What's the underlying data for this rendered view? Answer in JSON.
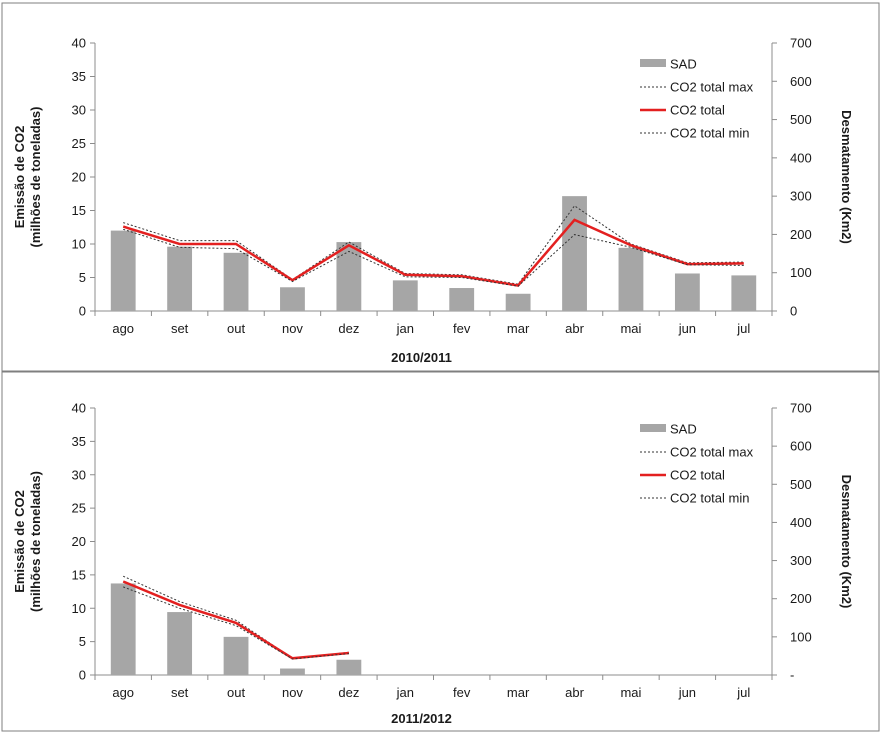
{
  "chart_data": [
    {
      "type": "bar",
      "period_label": "2010/2011",
      "categories": [
        "ago",
        "set",
        "out",
        "nov",
        "dez",
        "jan",
        "fev",
        "mar",
        "abr",
        "mai",
        "jun",
        "jul"
      ],
      "ylabel_left": "Emissão de CO2",
      "ylabel_left_line2": "(milhões de toneladas)",
      "ylabel_right": "Desmatamento (Km2)",
      "ylim_left": [
        0,
        40
      ],
      "ylim_right": [
        0,
        700
      ],
      "yticks_left": [
        "0",
        "5",
        "10",
        "15",
        "20",
        "25",
        "30",
        "35",
        "40"
      ],
      "yticks_right": [
        "0",
        "100",
        "200",
        "300",
        "400",
        "500",
        "600",
        "700"
      ],
      "series": [
        {
          "name": "SAD",
          "axis": "right",
          "kind": "bar",
          "color": "#a6a6a6",
          "values": [
            210,
            168,
            152,
            62,
            180,
            80,
            60,
            45,
            300,
            165,
            98,
            93
          ]
        },
        {
          "name": "CO2 total max",
          "axis": "left",
          "kind": "line",
          "style": "dotted",
          "color": "#333333",
          "values": [
            13.2,
            10.5,
            10.5,
            4.7,
            10.3,
            5.6,
            5.4,
            4.0,
            15.7,
            10.0,
            7.2,
            7.3
          ]
        },
        {
          "name": "CO2 total",
          "axis": "left",
          "kind": "line",
          "style": "solid",
          "color": "#e32020",
          "values": [
            12.6,
            10.0,
            10.0,
            4.6,
            9.8,
            5.4,
            5.2,
            3.8,
            13.6,
            9.8,
            7.0,
            7.1
          ]
        },
        {
          "name": "CO2 total min",
          "axis": "left",
          "kind": "line",
          "style": "dotted",
          "color": "#333333",
          "values": [
            12.2,
            9.5,
            9.3,
            4.4,
            8.9,
            5.1,
            5.0,
            3.7,
            11.4,
            9.5,
            6.9,
            6.8
          ]
        }
      ]
    },
    {
      "type": "bar",
      "period_label": "2011/2012",
      "categories": [
        "ago",
        "set",
        "out",
        "nov",
        "dez",
        "jan",
        "fev",
        "mar",
        "abr",
        "mai",
        "jun",
        "jul"
      ],
      "ylabel_left": "Emissão de CO2",
      "ylabel_left_line2": "(milhões de toneladas)",
      "ylabel_right": "Desmatamento (Km2)",
      "ylim_left": [
        0,
        40
      ],
      "ylim_right": [
        0,
        700
      ],
      "yticks_left": [
        "0",
        "5",
        "10",
        "15",
        "20",
        "25",
        "30",
        "35",
        "40"
      ],
      "yticks_right": [
        "-",
        "100",
        "200",
        "300",
        "400",
        "500",
        "600",
        "700"
      ],
      "series": [
        {
          "name": "SAD",
          "axis": "right",
          "kind": "bar",
          "color": "#a6a6a6",
          "values": [
            240,
            165,
            100,
            17,
            40,
            null,
            null,
            null,
            null,
            null,
            null,
            null
          ]
        },
        {
          "name": "CO2 total max",
          "axis": "left",
          "kind": "line",
          "style": "dotted",
          "color": "#333333",
          "values": [
            14.8,
            11.0,
            8.2,
            2.5,
            3.4,
            null,
            null,
            null,
            null,
            null,
            null,
            null
          ]
        },
        {
          "name": "CO2 total",
          "axis": "left",
          "kind": "line",
          "style": "solid",
          "color": "#e32020",
          "values": [
            14.0,
            10.5,
            7.8,
            2.5,
            3.3,
            null,
            null,
            null,
            null,
            null,
            null,
            null
          ]
        },
        {
          "name": "CO2 total min",
          "axis": "left",
          "kind": "line",
          "style": "dotted",
          "color": "#333333",
          "values": [
            13.2,
            10.0,
            7.4,
            2.4,
            3.2,
            null,
            null,
            null,
            null,
            null,
            null,
            null
          ]
        }
      ]
    }
  ]
}
